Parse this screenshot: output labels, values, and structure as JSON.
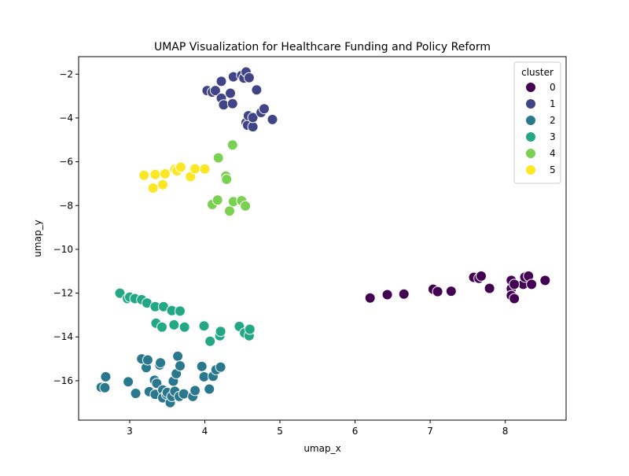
{
  "chart_data": {
    "type": "scatter",
    "title": "UMAP Visualization for Healthcare Funding and Policy Reform",
    "xlabel": "umap_x",
    "ylabel": "umap_y",
    "xlim": [
      2.32,
      8.81
    ],
    "ylim": [
      -17.8,
      -1.2
    ],
    "xticks": [
      3,
      4,
      5,
      6,
      7,
      8
    ],
    "yticks": [
      -16,
      -14,
      -12,
      -10,
      -8,
      -6,
      -4,
      -2
    ],
    "grid": false,
    "legend": {
      "title": "cluster",
      "position": "top-right"
    },
    "series": [
      {
        "name": "0",
        "color": "#440154",
        "points": [
          [
            6.2,
            -12.22
          ],
          [
            6.43,
            -12.07
          ],
          [
            6.65,
            -12.04
          ],
          [
            7.04,
            -11.82
          ],
          [
            7.1,
            -11.93
          ],
          [
            7.28,
            -11.91
          ],
          [
            7.58,
            -11.28
          ],
          [
            7.65,
            -11.32
          ],
          [
            7.68,
            -11.22
          ],
          [
            7.79,
            -11.78
          ],
          [
            8.08,
            -11.42
          ],
          [
            8.08,
            -11.8
          ],
          [
            8.08,
            -12.11
          ],
          [
            8.12,
            -12.25
          ],
          [
            8.24,
            -11.6
          ],
          [
            8.26,
            -11.27
          ],
          [
            8.31,
            -11.22
          ],
          [
            8.35,
            -11.6
          ],
          [
            8.53,
            -11.42
          ],
          [
            8.12,
            -11.6
          ]
        ]
      },
      {
        "name": "1",
        "color": "#414487",
        "points": [
          [
            4.03,
            -2.75
          ],
          [
            4.1,
            -2.82
          ],
          [
            4.14,
            -2.75
          ],
          [
            4.22,
            -2.33
          ],
          [
            4.22,
            -3.1
          ],
          [
            4.25,
            -3.4
          ],
          [
            4.34,
            -2.87
          ],
          [
            4.37,
            -3.35
          ],
          [
            4.38,
            -2.12
          ],
          [
            4.49,
            -2.06
          ],
          [
            4.52,
            -2.18
          ],
          [
            4.55,
            -1.9
          ],
          [
            4.59,
            -2.16
          ],
          [
            4.55,
            -4.21
          ],
          [
            4.57,
            -4.33
          ],
          [
            4.58,
            -3.9
          ],
          [
            4.64,
            -4.4
          ],
          [
            4.64,
            -3.98
          ],
          [
            4.69,
            -2.72
          ],
          [
            4.75,
            -3.75
          ],
          [
            4.79,
            -3.58
          ],
          [
            4.9,
            -4.07
          ]
        ]
      },
      {
        "name": "2",
        "color": "#2a788e",
        "points": [
          [
            2.62,
            -16.3
          ],
          [
            2.67,
            -16.32
          ],
          [
            2.68,
            -15.82
          ],
          [
            2.98,
            -16.05
          ],
          [
            3.08,
            -16.58
          ],
          [
            3.16,
            -15.0
          ],
          [
            3.22,
            -15.4
          ],
          [
            3.24,
            -15.05
          ],
          [
            3.26,
            -16.5
          ],
          [
            3.33,
            -15.98
          ],
          [
            3.34,
            -16.62
          ],
          [
            3.36,
            -16.12
          ],
          [
            3.4,
            -15.28
          ],
          [
            3.41,
            -15.18
          ],
          [
            3.44,
            -16.42
          ],
          [
            3.44,
            -16.78
          ],
          [
            3.49,
            -16.62
          ],
          [
            3.5,
            -16.53
          ],
          [
            3.54,
            -17.0
          ],
          [
            3.56,
            -16.72
          ],
          [
            3.58,
            -16.02
          ],
          [
            3.6,
            -16.48
          ],
          [
            3.62,
            -15.68
          ],
          [
            3.64,
            -14.88
          ],
          [
            3.66,
            -16.72
          ],
          [
            3.67,
            -15.32
          ],
          [
            3.72,
            -16.6
          ],
          [
            3.84,
            -16.72
          ],
          [
            3.87,
            -16.45
          ],
          [
            3.96,
            -15.35
          ],
          [
            3.99,
            -15.82
          ],
          [
            4.06,
            -16.38
          ],
          [
            4.11,
            -15.8
          ],
          [
            4.15,
            -15.5
          ],
          [
            4.21,
            -15.38
          ]
        ]
      },
      {
        "name": "3",
        "color": "#22a884",
        "points": [
          [
            2.87,
            -12.0
          ],
          [
            2.97,
            -12.25
          ],
          [
            3.0,
            -12.18
          ],
          [
            3.07,
            -12.25
          ],
          [
            3.16,
            -12.3
          ],
          [
            3.23,
            -12.45
          ],
          [
            3.34,
            -12.62
          ],
          [
            3.35,
            -13.37
          ],
          [
            3.43,
            -13.55
          ],
          [
            3.45,
            -12.62
          ],
          [
            3.56,
            -12.8
          ],
          [
            3.59,
            -13.45
          ],
          [
            3.67,
            -12.82
          ],
          [
            3.73,
            -13.55
          ],
          [
            3.99,
            -13.5
          ],
          [
            4.07,
            -14.2
          ],
          [
            4.2,
            -13.95
          ],
          [
            4.21,
            -13.75
          ],
          [
            4.46,
            -13.52
          ],
          [
            4.53,
            -13.82
          ],
          [
            4.59,
            -13.95
          ],
          [
            4.6,
            -13.65
          ]
        ]
      },
      {
        "name": "4",
        "color": "#7ad151",
        "points": [
          [
            4.18,
            -5.82
          ],
          [
            4.28,
            -6.65
          ],
          [
            4.29,
            -6.8
          ],
          [
            4.37,
            -5.23
          ],
          [
            4.1,
            -7.95
          ],
          [
            4.17,
            -7.75
          ],
          [
            4.33,
            -8.25
          ],
          [
            4.38,
            -7.82
          ],
          [
            4.49,
            -7.78
          ],
          [
            4.54,
            -8.02
          ]
        ]
      },
      {
        "name": "5",
        "color": "#fde725",
        "points": [
          [
            3.19,
            -6.62
          ],
          [
            3.31,
            -7.2
          ],
          [
            3.34,
            -6.58
          ],
          [
            3.44,
            -7.05
          ],
          [
            3.47,
            -6.55
          ],
          [
            3.6,
            -6.35
          ],
          [
            3.63,
            -6.42
          ],
          [
            3.68,
            -6.25
          ],
          [
            3.81,
            -6.68
          ],
          [
            3.87,
            -6.32
          ],
          [
            4.0,
            -6.33
          ]
        ]
      }
    ]
  }
}
